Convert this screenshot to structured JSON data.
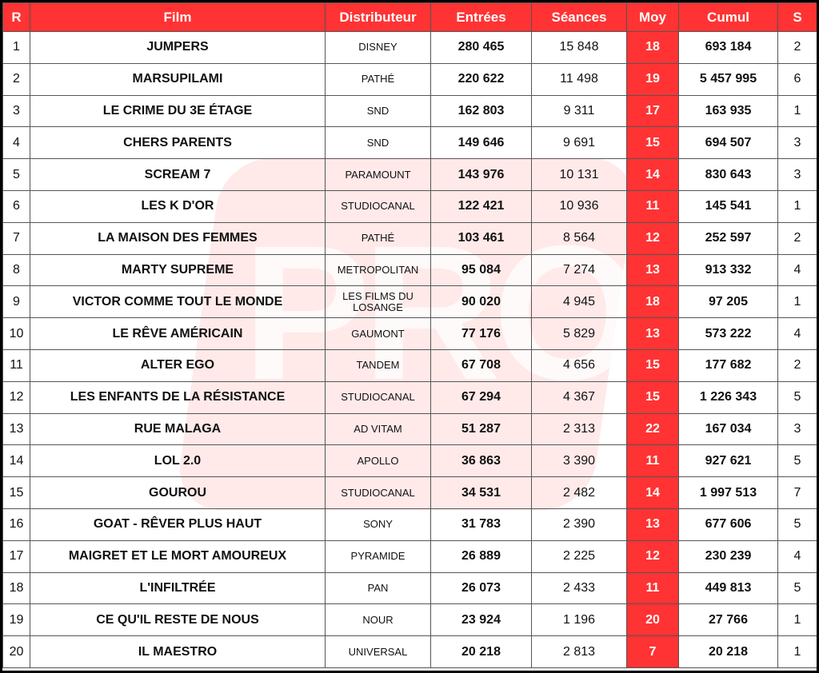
{
  "headers": [
    "R",
    "Film",
    "Distributeur",
    "Entrées",
    "Séances",
    "Moy",
    "Cumul",
    "S"
  ],
  "watermark": "PRO",
  "accent_color": "#ff3333",
  "rows": [
    {
      "r": "1",
      "film": "JUMPERS",
      "dist": "DISNEY",
      "entrees": "280 465",
      "seances": "15 848",
      "moy": "18",
      "cumul": "693 184",
      "s": "2"
    },
    {
      "r": "2",
      "film": "MARSUPILAMI",
      "dist": "PATHÉ",
      "entrees": "220 622",
      "seances": "11 498",
      "moy": "19",
      "cumul": "5 457 995",
      "s": "6"
    },
    {
      "r": "3",
      "film": "LE CRIME DU 3E ÉTAGE",
      "dist": "SND",
      "entrees": "162 803",
      "seances": "9 311",
      "moy": "17",
      "cumul": "163 935",
      "s": "1"
    },
    {
      "r": "4",
      "film": "CHERS PARENTS",
      "dist": "SND",
      "entrees": "149 646",
      "seances": "9 691",
      "moy": "15",
      "cumul": "694 507",
      "s": "3"
    },
    {
      "r": "5",
      "film": "SCREAM 7",
      "dist": "PARAMOUNT",
      "entrees": "143 976",
      "seances": "10 131",
      "moy": "14",
      "cumul": "830 643",
      "s": "3"
    },
    {
      "r": "6",
      "film": "LES K D'OR",
      "dist": "STUDIOCANAL",
      "entrees": "122 421",
      "seances": "10 936",
      "moy": "11",
      "cumul": "145 541",
      "s": "1"
    },
    {
      "r": "7",
      "film": "LA MAISON DES FEMMES",
      "dist": "PATHÉ",
      "entrees": "103 461",
      "seances": "8 564",
      "moy": "12",
      "cumul": "252 597",
      "s": "2"
    },
    {
      "r": "8",
      "film": "MARTY SUPREME",
      "dist": "METROPOLITAN",
      "entrees": "95 084",
      "seances": "7 274",
      "moy": "13",
      "cumul": "913 332",
      "s": "4"
    },
    {
      "r": "9",
      "film": "VICTOR COMME TOUT LE MONDE",
      "dist": "LES FILMS DU LOSANGE",
      "entrees": "90 020",
      "seances": "4 945",
      "moy": "18",
      "cumul": "97 205",
      "s": "1"
    },
    {
      "r": "10",
      "film": "LE RÊVE AMÉRICAIN",
      "dist": "GAUMONT",
      "entrees": "77 176",
      "seances": "5 829",
      "moy": "13",
      "cumul": "573 222",
      "s": "4"
    },
    {
      "r": "11",
      "film": "ALTER EGO",
      "dist": "TANDEM",
      "entrees": "67 708",
      "seances": "4 656",
      "moy": "15",
      "cumul": "177 682",
      "s": "2"
    },
    {
      "r": "12",
      "film": "LES ENFANTS DE LA RÉSISTANCE",
      "dist": "STUDIOCANAL",
      "entrees": "67 294",
      "seances": "4 367",
      "moy": "15",
      "cumul": "1 226 343",
      "s": "5"
    },
    {
      "r": "13",
      "film": "RUE MALAGA",
      "dist": "AD VITAM",
      "entrees": "51 287",
      "seances": "2 313",
      "moy": "22",
      "cumul": "167 034",
      "s": "3"
    },
    {
      "r": "14",
      "film": "LOL 2.0",
      "dist": "APOLLO",
      "entrees": "36 863",
      "seances": "3 390",
      "moy": "11",
      "cumul": "927 621",
      "s": "5"
    },
    {
      "r": "15",
      "film": "GOUROU",
      "dist": "STUDIOCANAL",
      "entrees": "34 531",
      "seances": "2 482",
      "moy": "14",
      "cumul": "1 997 513",
      "s": "7"
    },
    {
      "r": "16",
      "film": "GOAT - RÊVER PLUS HAUT",
      "dist": "SONY",
      "entrees": "31 783",
      "seances": "2 390",
      "moy": "13",
      "cumul": "677 606",
      "s": "5"
    },
    {
      "r": "17",
      "film": "MAIGRET ET LE MORT AMOUREUX",
      "dist": "PYRAMIDE",
      "entrees": "26 889",
      "seances": "2 225",
      "moy": "12",
      "cumul": "230 239",
      "s": "4"
    },
    {
      "r": "18",
      "film": "L'INFILTRÉE",
      "dist": "PAN",
      "entrees": "26 073",
      "seances": "2 433",
      "moy": "11",
      "cumul": "449 813",
      "s": "5"
    },
    {
      "r": "19",
      "film": "CE QU'IL RESTE DE NOUS",
      "dist": "NOUR",
      "entrees": "23 924",
      "seances": "1 196",
      "moy": "20",
      "cumul": "27 766",
      "s": "1"
    },
    {
      "r": "20",
      "film": "IL MAESTRO",
      "dist": "UNIVERSAL",
      "entrees": "20 218",
      "seances": "2 813",
      "moy": "7",
      "cumul": "20 218",
      "s": "1"
    }
  ]
}
